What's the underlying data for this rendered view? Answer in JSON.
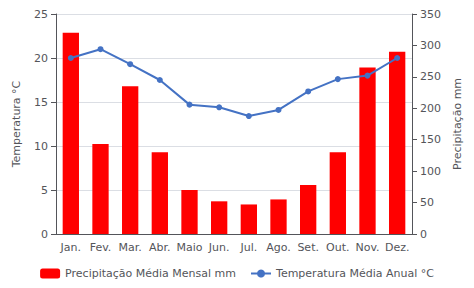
{
  "chart_data": {
    "type": "bar",
    "categories": [
      "Jan.",
      "Fev.",
      "Mar.",
      "Abr.",
      "Maio",
      "Jun.",
      "Jul.",
      "Ago.",
      "Set.",
      "Out.",
      "Nov.",
      "Dez."
    ],
    "series": [
      {
        "name": "Precipitação Média Mensal mm",
        "type": "bar",
        "color": "#ff0000",
        "axis": "y2",
        "values": [
          320,
          143,
          235,
          130,
          70,
          52,
          47,
          55,
          78,
          130,
          265,
          290
        ]
      },
      {
        "name": "Temperatura Média Anual °C",
        "type": "line",
        "color": "#4472c4",
        "marker": "circle",
        "values": [
          20.0,
          21.0,
          19.3,
          17.5,
          14.7,
          14.4,
          13.4,
          14.1,
          16.2,
          17.6,
          18.0,
          20.0
        ]
      }
    ],
    "ylabel": "Temperatura °C",
    "y2label": "Precipitação mm",
    "ylim": [
      0,
      25
    ],
    "yticks": [
      0,
      5,
      10,
      15,
      20,
      25
    ],
    "y2lim": [
      0,
      350
    ],
    "y2ticks": [
      0,
      50,
      100,
      150,
      200,
      250,
      300,
      350
    ],
    "grid": true,
    "legend": "bottom"
  }
}
